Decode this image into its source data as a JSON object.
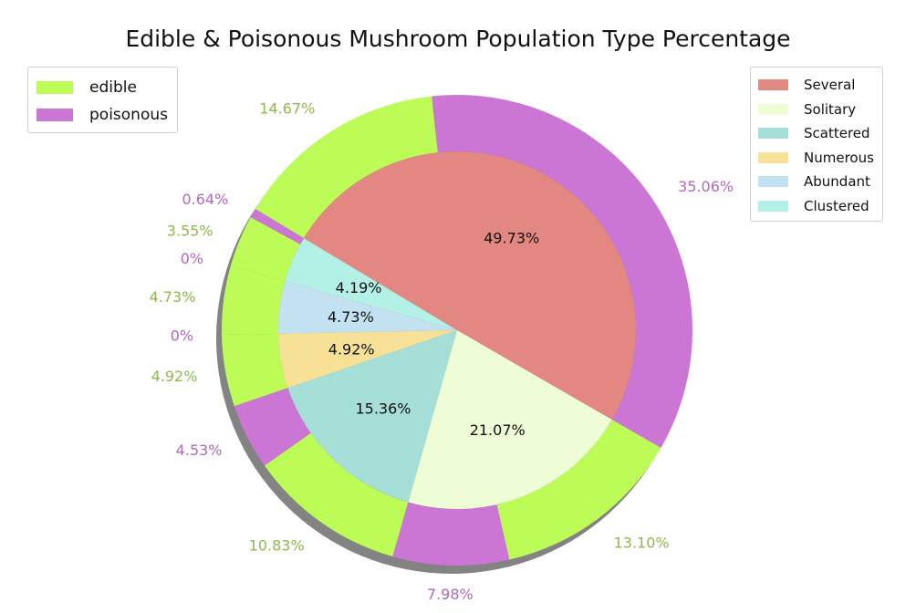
{
  "chart_data": {
    "type": "pie",
    "title": "Edible & Poisonous Mushroom Population Type Percentage",
    "outer_ring": {
      "series": [
        {
          "name": "edible",
          "color": "#bdfb56",
          "label_color": "#8fba4a"
        },
        {
          "name": "poisonous",
          "color": "#cb76d4",
          "label_color": "#b169bb"
        }
      ],
      "slices": [
        {
          "category": "Several",
          "class": "poisonous",
          "label": "35.06%",
          "value": 35.06
        },
        {
          "category": "Several",
          "class": "edible",
          "label": "14.67%",
          "value": 14.67
        },
        {
          "category": "Clustered",
          "class": "poisonous",
          "label": "0.64%",
          "value": 0.64
        },
        {
          "category": "Clustered",
          "class": "edible",
          "label": "3.55%",
          "value": 3.55
        },
        {
          "category": "Abundant",
          "class": "poisonous",
          "label": "0%",
          "value": 0
        },
        {
          "category": "Abundant",
          "class": "edible",
          "label": "4.73%",
          "value": 4.73
        },
        {
          "category": "Numerous",
          "class": "poisonous",
          "label": "0%",
          "value": 0
        },
        {
          "category": "Numerous",
          "class": "edible",
          "label": "4.92%",
          "value": 4.92
        },
        {
          "category": "Scattered",
          "class": "poisonous",
          "label": "4.53%",
          "value": 4.53
        },
        {
          "category": "Scattered",
          "class": "edible",
          "label": "10.83%",
          "value": 10.83
        },
        {
          "category": "Solitary",
          "class": "poisonous",
          "label": "7.98%",
          "value": 7.98
        },
        {
          "category": "Solitary",
          "class": "edible",
          "label": "13.10%",
          "value": 13.1
        }
      ]
    },
    "inner_ring": {
      "slices": [
        {
          "name": "Several",
          "label": "49.73%",
          "value": 49.73,
          "color": "#e38783"
        },
        {
          "name": "Clustered",
          "label": "4.19%",
          "value": 4.19,
          "color": "#b3f0e6"
        },
        {
          "name": "Abundant",
          "label": "4.73%",
          "value": 4.73,
          "color": "#c2e1f1"
        },
        {
          "name": "Numerous",
          "label": "4.92%",
          "value": 4.92,
          "color": "#f7e196"
        },
        {
          "name": "Scattered",
          "label": "15.36%",
          "value": 15.36,
          "color": "#a6dfd7"
        },
        {
          "name": "Solitary",
          "label": "21.07%",
          "value": 21.07,
          "color": "#eefdd5"
        }
      ]
    },
    "legend_outer": {
      "placement": "top-left",
      "entries": [
        "edible",
        "poisonous"
      ]
    },
    "legend_inner": {
      "placement": "top-right",
      "entries": [
        "Several",
        "Solitary",
        "Scattered",
        "Numerous",
        "Abundant",
        "Clustered"
      ]
    },
    "shadow": true
  }
}
